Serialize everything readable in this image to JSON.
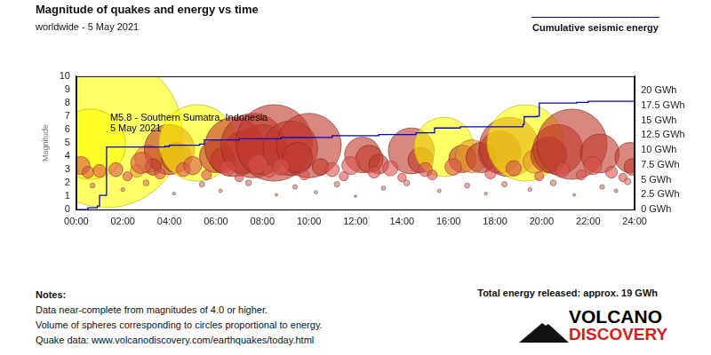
{
  "chart_data": {
    "type": "bubble",
    "title": "Magnitude of quakes and energy vs time",
    "subtitle": "worldwide -  5 May 2021",
    "y_label": "Magnitude",
    "xlim": [
      0,
      24
    ],
    "xticks": [
      {
        "value": 0,
        "label": "00:00"
      },
      {
        "value": 2,
        "label": "02:00"
      },
      {
        "value": 4,
        "label": "04:00"
      },
      {
        "value": 6,
        "label": "06:00"
      },
      {
        "value": 8,
        "label": "08:00"
      },
      {
        "value": 10,
        "label": "10:00"
      },
      {
        "value": 12,
        "label": "12:00"
      },
      {
        "value": 14,
        "label": "14:00"
      },
      {
        "value": 16,
        "label": "16:00"
      },
      {
        "value": 18,
        "label": "18:00"
      },
      {
        "value": 20,
        "label": "20:00"
      },
      {
        "value": 22,
        "label": "22:00"
      },
      {
        "value": 24,
        "label": "24:00"
      }
    ],
    "ylim": [
      0,
      10
    ],
    "yticks": [
      0,
      1,
      2,
      3,
      4,
      5,
      6,
      7,
      8,
      9,
      10
    ],
    "y2lim": [
      0,
      22.4
    ],
    "y2ticks": [
      {
        "value": 0,
        "label": "0 GWh"
      },
      {
        "value": 2.5,
        "label": "2.5 GWh"
      },
      {
        "value": 5,
        "label": "5 GWh"
      },
      {
        "value": 7.5,
        "label": "7.5 GWh"
      },
      {
        "value": 10,
        "label": "10 GWh"
      },
      {
        "value": 12.5,
        "label": "12.5 GWh"
      },
      {
        "value": 15,
        "label": "15 GWh"
      },
      {
        "value": 17.5,
        "label": "17.5 GWh"
      },
      {
        "value": 20,
        "label": "20 GWh"
      }
    ],
    "grid": false,
    "legend": "top right",
    "series": [
      {
        "type": "bubble",
        "x": [
          1.3,
          0.6,
          3.1,
          3.3,
          2.6,
          4.0,
          4.3,
          5.2,
          6.0,
          6.3,
          6.8,
          7.2,
          7.6,
          8.0,
          8.5,
          9.2,
          10.0,
          9.5,
          10.5,
          12.3,
          12.6,
          13.0,
          14.4,
          14.8,
          15.8,
          16.6,
          17.0,
          17.4,
          18.2,
          18.6,
          19.3,
          19.7,
          20.3,
          20.7,
          21.3,
          22.5,
          23.8,
          23.9,
          0.2,
          0.5,
          1.0,
          1.7,
          2.2,
          2.8,
          3.6,
          4.6,
          5.0,
          5.6,
          6.5,
          7.0,
          7.8,
          8.3,
          8.8,
          9.8,
          11.0,
          11.5,
          11.8,
          12.8,
          13.5,
          14.0,
          15.0,
          15.3,
          16.2,
          17.8,
          18.8,
          19.9,
          20.9,
          21.7,
          22.2,
          23.0,
          23.5,
          0.7,
          2.0,
          3.0,
          4.2,
          5.4,
          6.2,
          7.4,
          8.6,
          9.4,
          10.3,
          11.2,
          12.0,
          13.2,
          14.2,
          15.6,
          16.8,
          17.6,
          18.4,
          19.5,
          20.5,
          21.4,
          22.6,
          23.2,
          23.7
        ],
        "values": [
          5.8,
          4.9,
          3.8,
          3.2,
          2.9,
          4.5,
          3.9,
          5.0,
          4.0,
          3.7,
          4.7,
          4.3,
          4.8,
          4.5,
          5.0,
          4.6,
          4.8,
          3.9,
          3.2,
          4.1,
          3.8,
          3.4,
          4.4,
          3.7,
          4.7,
          3.8,
          4.0,
          3.9,
          4.3,
          4.7,
          5.0,
          3.6,
          4.1,
          4.5,
          4.9,
          4.2,
          3.9,
          3.2,
          3.3,
          2.8,
          2.9,
          3.0,
          2.5,
          3.5,
          2.7,
          3.0,
          3.3,
          2.6,
          3.1,
          2.4,
          3.4,
          2.9,
          3.2,
          2.6,
          3.0,
          2.5,
          3.3,
          2.8,
          3.1,
          2.4,
          3.0,
          2.6,
          3.2,
          2.7,
          3.1,
          2.5,
          3.0,
          2.6,
          3.3,
          2.8,
          2.4,
          1.8,
          1.5,
          2.0,
          1.2,
          1.9,
          1.4,
          2.0,
          1.1,
          1.7,
          1.3,
          1.9,
          1.0,
          1.6,
          2.0,
          1.4,
          1.8,
          1.2,
          1.9,
          1.5,
          2.0,
          1.1,
          1.7,
          1.4,
          2.1
        ],
        "colors": [
          "#ffff00",
          "#ffff00",
          "#e69a28",
          "#c0392b",
          "#e69a28",
          "#c0392b",
          "#c0392b",
          "#ffff00",
          "#c0392b",
          "#c0392b",
          "#c0392b",
          "#c0392b",
          "#c0392b",
          "#c0392b",
          "#c0392b",
          "#c0392b",
          "#c0392b",
          "#c0392b",
          "#c0392b",
          "#c0392b",
          "#c0392b",
          "#c0392b",
          "#c0392b",
          "#c0392b",
          "#ffff00",
          "#c0392b",
          "#e69a28",
          "#c0392b",
          "#c0392b",
          "#c0392b",
          "#ffff00",
          "#e69a28",
          "#c0392b",
          "#c0392b",
          "#c0392b",
          "#c0392b",
          "#c0392b",
          "#c0392b",
          "#d9534f",
          "#d9534f",
          "#d9534f",
          "#d9534f",
          "#d9534f",
          "#d9534f",
          "#d9534f",
          "#d9534f",
          "#d9534f",
          "#d9534f",
          "#d9534f",
          "#d9534f",
          "#d9534f",
          "#d9534f",
          "#d9534f",
          "#d9534f",
          "#d9534f",
          "#d9534f",
          "#d9534f",
          "#d9534f",
          "#d9534f",
          "#d9534f",
          "#d9534f",
          "#d9534f",
          "#d9534f",
          "#d9534f",
          "#d9534f",
          "#d9534f",
          "#d9534f",
          "#d9534f",
          "#d9534f",
          "#d9534f",
          "#d9534f",
          "#c97a6a",
          "#c97a6a",
          "#c97a6a",
          "#c97a6a",
          "#c97a6a",
          "#c97a6a",
          "#c97a6a",
          "#c97a6a",
          "#c97a6a",
          "#c97a6a",
          "#c97a6a",
          "#c97a6a",
          "#c97a6a",
          "#c97a6a",
          "#c97a6a",
          "#c97a6a",
          "#c97a6a",
          "#c97a6a",
          "#c97a6a",
          "#c97a6a",
          "#c97a6a",
          "#c97a6a",
          "#c97a6a",
          "#c97a6a"
        ]
      },
      {
        "name": "Cumulative seismic energy",
        "type": "line",
        "axis": "y2",
        "color": "#0000cc",
        "line_style": "stepped",
        "x": [
          0,
          0.5,
          0.9,
          1.0,
          1.3,
          3.8,
          4.0,
          5.3,
          5.5,
          7.0,
          8.8,
          11.0,
          13.0,
          14.6,
          15.4,
          16.5,
          19.2,
          19.25,
          19.8,
          19.9,
          21.5,
          22.0,
          24.0
        ],
        "values": [
          0,
          0.3,
          0.6,
          2.4,
          10.5,
          10.6,
          10.8,
          11.0,
          11.7,
          11.9,
          12.1,
          12.4,
          12.6,
          12.9,
          13.7,
          13.9,
          14.3,
          15.6,
          15.7,
          17.9,
          18.0,
          18.2,
          18.4
        ]
      }
    ],
    "annotations": [
      {
        "text": [
          "M5.8 - Southern Sumatra, Indonesia",
          "5 May 2021"
        ],
        "x": 1.3,
        "y": 5.8
      }
    ],
    "notes": {
      "title": "Notes:",
      "lines": [
        "Data near-complete from magnitudes of 4.0 or higher.",
        "Volume of spheres corresponding to circles proportional to energy.",
        "Quake data: www.volcanodiscovery.com/earthquakes/today.html"
      ]
    },
    "total": "Total energy released: approx. 19 GWh",
    "logo": [
      "VOLCANO",
      "DISCOVERY"
    ]
  }
}
